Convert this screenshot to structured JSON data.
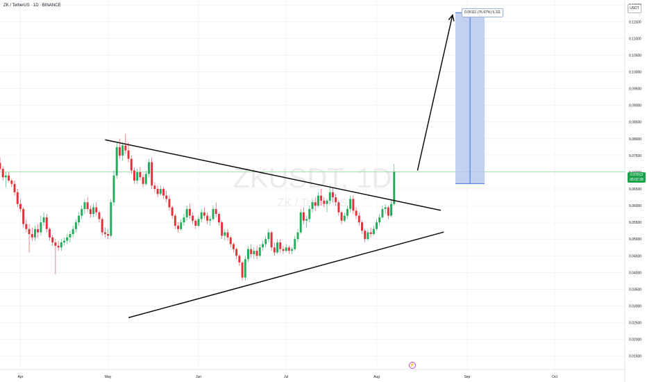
{
  "header": {
    "title": "ZK / TetherUS · 1D · BINANCE",
    "currency": "USDT"
  },
  "watermark": {
    "symbol": "ZKUSDT, 1D",
    "subtitle": "ZK / TetherUS"
  },
  "price_label": {
    "price": "0.07013",
    "countdown": "06:02:38"
  },
  "projection": {
    "label": "0.05111 (76.67%) 5,111"
  },
  "event_icon": "lightning-icon",
  "colors": {
    "up": "#22ab5a",
    "down": "#e0323b",
    "current_price_line": "#7fd68e",
    "projection_fill": "#b9c9ec",
    "projection_border": "#3d6fe0",
    "trendline": "#0d0d0d",
    "background": "#ffffff"
  },
  "chart_data": {
    "type": "candlestick",
    "x_axis": {
      "tick_labels": [
        "Apr",
        "May",
        "Jun",
        "Jul",
        "Aug",
        "Sep",
        "Oct"
      ],
      "tick_dates": [
        "2025-04-01",
        "2025-05-01",
        "2025-06-01",
        "2025-07-01",
        "2025-08-01",
        "2025-09-01",
        "2025-10-01"
      ],
      "range": [
        "2025-03-25",
        "2025-10-25"
      ]
    },
    "y_axis": {
      "ticks": [
        "0.01500",
        "0.02000",
        "0.02500",
        "0.03000",
        "0.03500",
        "0.04000",
        "0.04500",
        "0.05000",
        "0.05500",
        "0.06000",
        "0.06500",
        "0.07000",
        "0.07500",
        "0.08000",
        "0.08500",
        "0.09000",
        "0.09500",
        "0.10000",
        "0.10500",
        "0.11000",
        "0.11500",
        "0.12000"
      ],
      "range": [
        0.011,
        0.1215
      ]
    },
    "current_price": 0.07013,
    "series": [
      {
        "first_date": "2025-03-25",
        "interval_days": 1,
        "ohlc": [
          [
            0.0728,
            0.0745,
            0.0705,
            0.071
          ],
          [
            0.071,
            0.0718,
            0.0675,
            0.0685
          ],
          [
            0.0685,
            0.07,
            0.0655,
            0.069
          ],
          [
            0.069,
            0.07,
            0.067,
            0.0675
          ],
          [
            0.0675,
            0.068,
            0.0655,
            0.0665
          ],
          [
            0.0665,
            0.0675,
            0.063,
            0.064
          ],
          [
            0.064,
            0.065,
            0.0595,
            0.0605
          ],
          [
            0.0605,
            0.062,
            0.058,
            0.059
          ],
          [
            0.059,
            0.0595,
            0.0535,
            0.0545
          ],
          [
            0.0545,
            0.056,
            0.052,
            0.053
          ],
          [
            0.053,
            0.0545,
            0.046,
            0.0515
          ],
          [
            0.0515,
            0.0535,
            0.0495,
            0.0505
          ],
          [
            0.0505,
            0.054,
            0.0495,
            0.053
          ],
          [
            0.053,
            0.0545,
            0.0505,
            0.052
          ],
          [
            0.052,
            0.057,
            0.051,
            0.055
          ],
          [
            0.055,
            0.058,
            0.054,
            0.0565
          ],
          [
            0.0565,
            0.0575,
            0.052,
            0.053
          ],
          [
            0.053,
            0.0535,
            0.0495,
            0.0505
          ],
          [
            0.0505,
            0.0512,
            0.048,
            0.049
          ],
          [
            0.049,
            0.05,
            0.0395,
            0.048
          ],
          [
            0.048,
            0.0495,
            0.0465,
            0.0475
          ],
          [
            0.0475,
            0.05,
            0.0465,
            0.049
          ],
          [
            0.049,
            0.0505,
            0.048,
            0.0495
          ],
          [
            0.0495,
            0.0515,
            0.0485,
            0.0505
          ],
          [
            0.0505,
            0.0525,
            0.049,
            0.0515
          ],
          [
            0.0515,
            0.054,
            0.0505,
            0.053
          ],
          [
            0.053,
            0.056,
            0.052,
            0.055
          ],
          [
            0.055,
            0.058,
            0.054,
            0.057
          ],
          [
            0.057,
            0.06,
            0.056,
            0.059
          ],
          [
            0.059,
            0.062,
            0.0575,
            0.061
          ],
          [
            0.061,
            0.0625,
            0.058,
            0.059
          ],
          [
            0.059,
            0.06,
            0.0565,
            0.0575
          ],
          [
            0.0575,
            0.0605,
            0.0565,
            0.0595
          ],
          [
            0.0595,
            0.061,
            0.057,
            0.058
          ],
          [
            0.058,
            0.0585,
            0.055,
            0.056
          ],
          [
            0.056,
            0.0565,
            0.051,
            0.052
          ],
          [
            0.052,
            0.0535,
            0.0505,
            0.0515
          ],
          [
            0.0515,
            0.053,
            0.05,
            0.051
          ],
          [
            0.051,
            0.062,
            0.0505,
            0.061
          ],
          [
            0.061,
            0.0705,
            0.06,
            0.069
          ],
          [
            0.069,
            0.079,
            0.068,
            0.0775
          ],
          [
            0.0775,
            0.08,
            0.074,
            0.075
          ],
          [
            0.075,
            0.079,
            0.0735,
            0.078
          ],
          [
            0.078,
            0.0815,
            0.0755,
            0.0765
          ],
          [
            0.0765,
            0.079,
            0.073,
            0.074
          ],
          [
            0.074,
            0.075,
            0.0695,
            0.0705
          ],
          [
            0.0705,
            0.0715,
            0.0665,
            0.0675
          ],
          [
            0.0675,
            0.071,
            0.0665,
            0.07
          ],
          [
            0.07,
            0.0715,
            0.0675,
            0.0685
          ],
          [
            0.0685,
            0.0695,
            0.0655,
            0.0665
          ],
          [
            0.0665,
            0.0705,
            0.066,
            0.0695
          ],
          [
            0.0695,
            0.074,
            0.0685,
            0.073
          ],
          [
            0.073,
            0.0745,
            0.065,
            0.066
          ],
          [
            0.066,
            0.067,
            0.064,
            0.065
          ],
          [
            0.065,
            0.066,
            0.0625,
            0.0635
          ],
          [
            0.0635,
            0.066,
            0.063,
            0.065
          ],
          [
            0.065,
            0.0655,
            0.062,
            0.063
          ],
          [
            0.063,
            0.0645,
            0.061,
            0.062
          ],
          [
            0.062,
            0.063,
            0.0585,
            0.0595
          ],
          [
            0.0595,
            0.06,
            0.056,
            0.057
          ],
          [
            0.057,
            0.0575,
            0.053,
            0.054
          ],
          [
            0.054,
            0.055,
            0.052,
            0.053
          ],
          [
            0.053,
            0.056,
            0.0525,
            0.055
          ],
          [
            0.055,
            0.0575,
            0.054,
            0.0565
          ],
          [
            0.0565,
            0.06,
            0.0555,
            0.059
          ],
          [
            0.059,
            0.0605,
            0.056,
            0.057
          ],
          [
            0.057,
            0.058,
            0.0545,
            0.0555
          ],
          [
            0.0555,
            0.056,
            0.053,
            0.054
          ],
          [
            0.054,
            0.057,
            0.0535,
            0.056
          ],
          [
            0.056,
            0.059,
            0.055,
            0.058
          ],
          [
            0.058,
            0.0595,
            0.056,
            0.057
          ],
          [
            0.057,
            0.058,
            0.0545,
            0.0555
          ],
          [
            0.0555,
            0.057,
            0.054,
            0.056
          ],
          [
            0.056,
            0.06,
            0.0555,
            0.059
          ],
          [
            0.059,
            0.061,
            0.0565,
            0.0575
          ],
          [
            0.0575,
            0.058,
            0.054,
            0.055
          ],
          [
            0.055,
            0.0555,
            0.05,
            0.051
          ],
          [
            0.051,
            0.053,
            0.0495,
            0.052
          ],
          [
            0.052,
            0.053,
            0.0495,
            0.0505
          ],
          [
            0.0505,
            0.051,
            0.0475,
            0.0485
          ],
          [
            0.0485,
            0.049,
            0.046,
            0.047
          ],
          [
            0.047,
            0.0475,
            0.044,
            0.045
          ],
          [
            0.045,
            0.0455,
            0.042,
            0.043
          ],
          [
            0.043,
            0.0435,
            0.0375,
            0.0385
          ],
          [
            0.0385,
            0.045,
            0.0375,
            0.044
          ],
          [
            0.044,
            0.048,
            0.043,
            0.047
          ],
          [
            0.047,
            0.0485,
            0.0445,
            0.0455
          ],
          [
            0.0455,
            0.0475,
            0.044,
            0.0465
          ],
          [
            0.0465,
            0.048,
            0.044,
            0.045
          ],
          [
            0.045,
            0.0485,
            0.0445,
            0.0475
          ],
          [
            0.0475,
            0.0495,
            0.0465,
            0.0485
          ],
          [
            0.0485,
            0.051,
            0.0475,
            0.05
          ],
          [
            0.05,
            0.053,
            0.049,
            0.052
          ],
          [
            0.052,
            0.0525,
            0.0465,
            0.0475
          ],
          [
            0.0475,
            0.049,
            0.045,
            0.046
          ],
          [
            0.046,
            0.05,
            0.0455,
            0.049
          ],
          [
            0.049,
            0.05,
            0.046,
            0.047
          ],
          [
            0.047,
            0.048,
            0.0455,
            0.0465
          ],
          [
            0.0465,
            0.0485,
            0.046,
            0.0475
          ],
          [
            0.0475,
            0.048,
            0.0455,
            0.0465
          ],
          [
            0.0465,
            0.0475,
            0.0455,
            0.047
          ],
          [
            0.047,
            0.051,
            0.0465,
            0.05
          ],
          [
            0.05,
            0.053,
            0.049,
            0.052
          ],
          [
            0.052,
            0.059,
            0.0515,
            0.058
          ],
          [
            0.058,
            0.0595,
            0.0545,
            0.0555
          ],
          [
            0.0555,
            0.057,
            0.0535,
            0.056
          ],
          [
            0.056,
            0.06,
            0.055,
            0.059
          ],
          [
            0.059,
            0.062,
            0.058,
            0.061
          ],
          [
            0.061,
            0.0625,
            0.0585,
            0.06
          ],
          [
            0.06,
            0.064,
            0.0595,
            0.063
          ],
          [
            0.063,
            0.065,
            0.06,
            0.0615
          ],
          [
            0.0615,
            0.0625,
            0.0595,
            0.0605
          ],
          [
            0.0605,
            0.062,
            0.058,
            0.0615
          ],
          [
            0.0615,
            0.066,
            0.0605,
            0.064
          ],
          [
            0.064,
            0.0655,
            0.061,
            0.0625
          ],
          [
            0.0625,
            0.0635,
            0.06,
            0.061
          ],
          [
            0.061,
            0.0615,
            0.057,
            0.058
          ],
          [
            0.058,
            0.0585,
            0.0545,
            0.0555
          ],
          [
            0.0555,
            0.058,
            0.055,
            0.057
          ],
          [
            0.057,
            0.06,
            0.056,
            0.059
          ],
          [
            0.059,
            0.063,
            0.058,
            0.062
          ],
          [
            0.062,
            0.063,
            0.0575,
            0.0585
          ],
          [
            0.0585,
            0.0595,
            0.056,
            0.057
          ],
          [
            0.057,
            0.058,
            0.054,
            0.055
          ],
          [
            0.055,
            0.0555,
            0.0515,
            0.0525
          ],
          [
            0.0525,
            0.053,
            0.049,
            0.05
          ],
          [
            0.05,
            0.053,
            0.0495,
            0.052
          ],
          [
            0.052,
            0.0535,
            0.0505,
            0.0515
          ],
          [
            0.0515,
            0.054,
            0.051,
            0.053
          ],
          [
            0.053,
            0.056,
            0.0525,
            0.055
          ],
          [
            0.055,
            0.0575,
            0.054,
            0.0565
          ],
          [
            0.0565,
            0.06,
            0.056,
            0.059
          ],
          [
            0.059,
            0.0605,
            0.0575,
            0.0595
          ],
          [
            0.0595,
            0.06,
            0.056,
            0.057
          ],
          [
            0.057,
            0.062,
            0.0565,
            0.0605
          ],
          [
            0.0605,
            0.0725,
            0.06,
            0.0701
          ]
        ]
      }
    ],
    "drawings": {
      "upper_trendline": {
        "from": [
          "2025-04-30",
          0.0797
        ],
        "to": [
          "2025-08-23",
          0.0586
        ]
      },
      "lower_trendline": {
        "from": [
          "2025-05-08",
          0.0265
        ],
        "to": [
          "2025-08-24",
          0.0521
        ]
      },
      "projection_arrow": {
        "from": [
          "2025-08-15",
          0.0705
        ],
        "to": [
          "2025-08-27",
          0.117
        ]
      },
      "projection_box": {
        "from": [
          "2025-08-28",
          0.0666
        ],
        "to": [
          "2025-09-07",
          0.1177
        ]
      }
    }
  }
}
